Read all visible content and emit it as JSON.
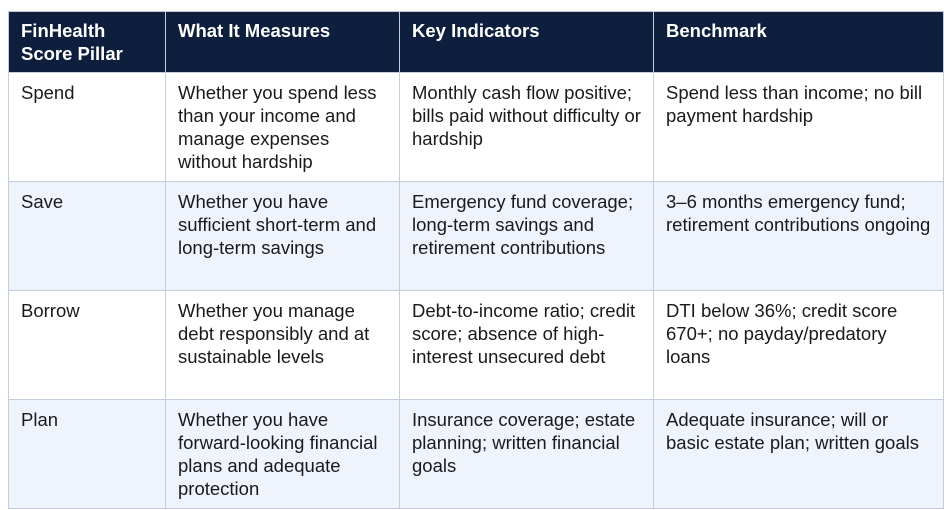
{
  "table": {
    "header": [
      "FinHealth Score Pillar",
      "What It Measures",
      "Key Indicators",
      "Benchmark"
    ],
    "rows": [
      [
        "Spend",
        "Whether you spend less than your income and manage expenses without hardship",
        "Monthly cash flow positive; bills paid without difficulty or hardship",
        "Spend less than income; no bill payment hardship"
      ],
      [
        "Save",
        "Whether you have sufficient short-term and long-term savings",
        "Emergency fund coverage; long-term savings and retirement contributions",
        "3–6 months emergency fund; retirement contributions ongoing"
      ],
      [
        "Borrow",
        "Whether you manage debt responsibly and at sustainable levels",
        "Debt-to-income ratio; credit score; absence of high-interest unsecured debt",
        "DTI below 36%; credit score 670+; no payday/predatory loans"
      ],
      [
        "Plan",
        "Whether you have forward-looking financial plans and adequate protection",
        "Insurance coverage; estate planning; written financial goals",
        "Adequate insurance; will or basic estate plan; written goals"
      ]
    ]
  }
}
